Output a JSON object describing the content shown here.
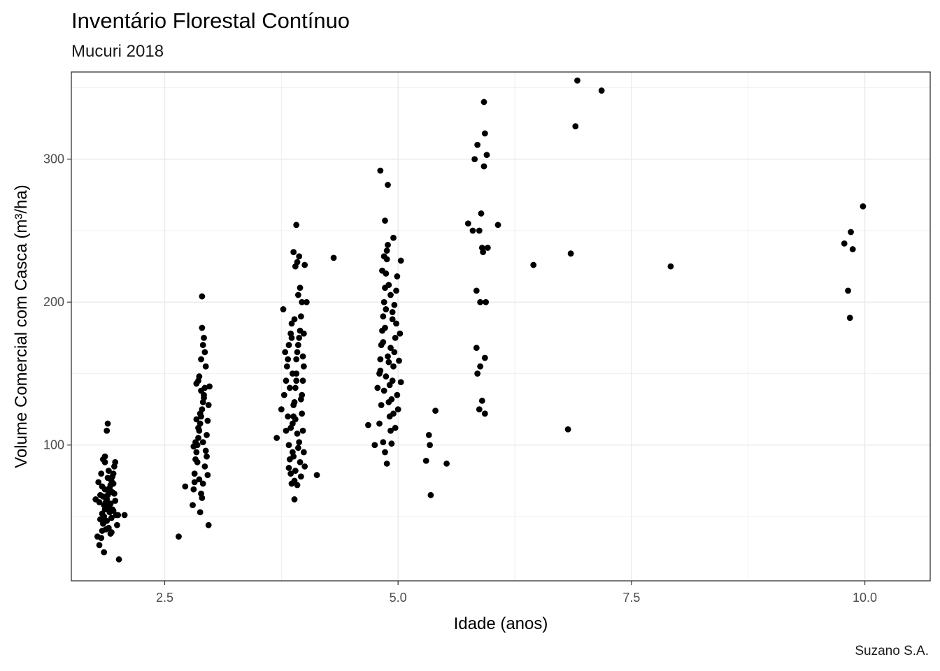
{
  "chart_data": {
    "type": "scatter",
    "title": "Inventário Florestal Contínuo",
    "subtitle": "Mucuri 2018",
    "caption": "Suzano S.A.",
    "xlabel": "Idade (anos)",
    "ylabel": "Volume Comercial com Casca (m³/ha)",
    "xlim": [
      1.5,
      10.7
    ],
    "ylim": [
      5,
      361
    ],
    "xticks": [
      2.5,
      5.0,
      7.5,
      10.0
    ],
    "xtick_labels": [
      "2.5",
      "5.0",
      "7.5",
      "10.0"
    ],
    "yticks": [
      100,
      200,
      300
    ],
    "ytick_labels": [
      "100",
      "200",
      "300"
    ],
    "grid": true,
    "legend": "none",
    "point_color": "#000000",
    "panel_border_color": "#333333",
    "grid_color": "#ebebeb",
    "points": [
      [
        1.8,
        30
      ],
      [
        1.82,
        35
      ],
      [
        1.83,
        40
      ],
      [
        1.84,
        45
      ],
      [
        1.85,
        50
      ],
      [
        1.86,
        55
      ],
      [
        1.87,
        60
      ],
      [
        1.88,
        62
      ],
      [
        1.89,
        65
      ],
      [
        1.9,
        68
      ],
      [
        1.91,
        70
      ],
      [
        1.92,
        72
      ],
      [
        1.93,
        75
      ],
      [
        1.94,
        78
      ],
      [
        1.95,
        80
      ],
      [
        1.96,
        85
      ],
      [
        1.97,
        88
      ],
      [
        1.84,
        90
      ],
      [
        1.86,
        92
      ],
      [
        1.88,
        110
      ],
      [
        1.89,
        115
      ],
      [
        1.8,
        60
      ],
      [
        1.81,
        48
      ],
      [
        1.83,
        52
      ],
      [
        1.85,
        58
      ],
      [
        1.87,
        63
      ],
      [
        1.9,
        42
      ],
      [
        1.92,
        38
      ],
      [
        1.94,
        55
      ],
      [
        1.96,
        66
      ],
      [
        1.98,
        51
      ],
      [
        2.0,
        51
      ],
      [
        1.78,
        36
      ],
      [
        1.76,
        62
      ],
      [
        1.79,
        74
      ],
      [
        1.82,
        80
      ],
      [
        1.85,
        25
      ],
      [
        1.9,
        57
      ],
      [
        1.93,
        49
      ],
      [
        1.95,
        73
      ],
      [
        1.97,
        61
      ],
      [
        1.99,
        44
      ],
      [
        1.86,
        69
      ],
      [
        1.88,
        47
      ],
      [
        1.91,
        53
      ],
      [
        1.84,
        64
      ],
      [
        1.87,
        41
      ],
      [
        1.89,
        77
      ],
      [
        1.92,
        59
      ],
      [
        1.94,
        67
      ],
      [
        2.07,
        51
      ],
      [
        2.01,
        20
      ],
      [
        1.83,
        71
      ],
      [
        1.85,
        46
      ],
      [
        1.88,
        56
      ],
      [
        1.9,
        82
      ],
      [
        1.93,
        39
      ],
      [
        1.95,
        54
      ],
      [
        1.81,
        65
      ],
      [
        1.86,
        88
      ],
      [
        2.65,
        36
      ],
      [
        2.72,
        71
      ],
      [
        2.8,
        58
      ],
      [
        2.81,
        69
      ],
      [
        2.82,
        80
      ],
      [
        2.83,
        90
      ],
      [
        2.84,
        95
      ],
      [
        2.85,
        100
      ],
      [
        2.86,
        105
      ],
      [
        2.87,
        110
      ],
      [
        2.88,
        115
      ],
      [
        2.89,
        120
      ],
      [
        2.9,
        125
      ],
      [
        2.91,
        130
      ],
      [
        2.92,
        135
      ],
      [
        2.93,
        140
      ],
      [
        2.84,
        143
      ],
      [
        2.86,
        145
      ],
      [
        2.89,
        160
      ],
      [
        2.91,
        170
      ],
      [
        2.92,
        175
      ],
      [
        2.9,
        182
      ],
      [
        2.9,
        204
      ],
      [
        2.88,
        53
      ],
      [
        2.89,
        66
      ],
      [
        2.91,
        73
      ],
      [
        2.93,
        85
      ],
      [
        2.94,
        96
      ],
      [
        2.95,
        107
      ],
      [
        2.96,
        117
      ],
      [
        2.97,
        128
      ],
      [
        2.98,
        141
      ],
      [
        2.97,
        44
      ],
      [
        2.94,
        155
      ],
      [
        2.87,
        76
      ],
      [
        2.85,
        88
      ],
      [
        2.83,
        102
      ],
      [
        2.86,
        112
      ],
      [
        2.88,
        122
      ],
      [
        2.92,
        133
      ],
      [
        2.9,
        63
      ],
      [
        2.95,
        92
      ],
      [
        2.81,
        99
      ],
      [
        2.84,
        118
      ],
      [
        2.87,
        148
      ],
      [
        2.93,
        165
      ],
      [
        2.96,
        79
      ],
      [
        2.82,
        74
      ],
      [
        2.89,
        138
      ],
      [
        2.91,
        102
      ],
      [
        3.7,
        105
      ],
      [
        3.75,
        125
      ],
      [
        3.78,
        135
      ],
      [
        3.8,
        145
      ],
      [
        3.81,
        155
      ],
      [
        3.82,
        160
      ],
      [
        3.83,
        100
      ],
      [
        3.84,
        90
      ],
      [
        3.85,
        80
      ],
      [
        3.86,
        73
      ],
      [
        3.87,
        115
      ],
      [
        3.88,
        120
      ],
      [
        3.89,
        130
      ],
      [
        3.9,
        140
      ],
      [
        3.91,
        150
      ],
      [
        3.92,
        165
      ],
      [
        3.93,
        170
      ],
      [
        3.94,
        175
      ],
      [
        3.95,
        180
      ],
      [
        3.96,
        190
      ],
      [
        3.97,
        200
      ],
      [
        3.98,
        110
      ],
      [
        3.99,
        95
      ],
      [
        4.0,
        85
      ],
      [
        3.89,
        62
      ],
      [
        3.9,
        225
      ],
      [
        3.92,
        228
      ],
      [
        3.88,
        235
      ],
      [
        3.94,
        232
      ],
      [
        3.91,
        254
      ],
      [
        4.0,
        226
      ],
      [
        4.02,
        200
      ],
      [
        4.13,
        79
      ],
      [
        4.31,
        231
      ],
      [
        3.77,
        195
      ],
      [
        3.79,
        165
      ],
      [
        3.83,
        170
      ],
      [
        3.85,
        178
      ],
      [
        3.86,
        185
      ],
      [
        3.88,
        128
      ],
      [
        3.9,
        118
      ],
      [
        3.92,
        108
      ],
      [
        3.93,
        98
      ],
      [
        3.95,
        88
      ],
      [
        3.96,
        78
      ],
      [
        3.97,
        135
      ],
      [
        3.98,
        145
      ],
      [
        3.99,
        155
      ],
      [
        3.84,
        140
      ],
      [
        3.87,
        150
      ],
      [
        3.91,
        160
      ],
      [
        3.93,
        205
      ],
      [
        3.95,
        210
      ],
      [
        3.89,
        188
      ],
      [
        3.82,
        120
      ],
      [
        3.85,
        112
      ],
      [
        3.88,
        92
      ],
      [
        3.9,
        82
      ],
      [
        3.92,
        72
      ],
      [
        3.94,
        102
      ],
      [
        3.96,
        132
      ],
      [
        3.98,
        162
      ],
      [
        3.8,
        110
      ],
      [
        3.86,
        175
      ],
      [
        3.97,
        122
      ],
      [
        3.99,
        178
      ],
      [
        3.83,
        84
      ],
      [
        3.87,
        95
      ],
      [
        3.89,
        75
      ],
      [
        3.91,
        145
      ],
      [
        4.68,
        114
      ],
      [
        4.75,
        100
      ],
      [
        4.78,
        140
      ],
      [
        4.8,
        150
      ],
      [
        4.81,
        160
      ],
      [
        4.82,
        170
      ],
      [
        4.83,
        180
      ],
      [
        4.84,
        190
      ],
      [
        4.85,
        200
      ],
      [
        4.86,
        210
      ],
      [
        4.87,
        220
      ],
      [
        4.88,
        230
      ],
      [
        4.89,
        240
      ],
      [
        4.9,
        130
      ],
      [
        4.91,
        120
      ],
      [
        4.92,
        110
      ],
      [
        4.93,
        101
      ],
      [
        4.94,
        145
      ],
      [
        4.95,
        155
      ],
      [
        4.96,
        165
      ],
      [
        4.97,
        175
      ],
      [
        4.98,
        185
      ],
      [
        4.99,
        135
      ],
      [
        5.0,
        125
      ],
      [
        4.86,
        257
      ],
      [
        4.89,
        282
      ],
      [
        4.81,
        292
      ],
      [
        4.95,
        245
      ],
      [
        5.03,
        229
      ],
      [
        5.02,
        178
      ],
      [
        5.03,
        144
      ],
      [
        4.88,
        87
      ],
      [
        4.86,
        95
      ],
      [
        4.84,
        102
      ],
      [
        4.8,
        115
      ],
      [
        4.82,
        128
      ],
      [
        4.85,
        138
      ],
      [
        4.87,
        148
      ],
      [
        4.9,
        158
      ],
      [
        4.92,
        168
      ],
      [
        4.94,
        188
      ],
      [
        4.96,
        198
      ],
      [
        4.98,
        208
      ],
      [
        4.99,
        218
      ],
      [
        4.83,
        222
      ],
      [
        4.85,
        232
      ],
      [
        4.87,
        195
      ],
      [
        4.89,
        162
      ],
      [
        4.91,
        142
      ],
      [
        4.93,
        132
      ],
      [
        4.95,
        122
      ],
      [
        4.97,
        112
      ],
      [
        4.81,
        152
      ],
      [
        4.84,
        172
      ],
      [
        4.86,
        182
      ],
      [
        5.01,
        159
      ],
      [
        4.88,
        236
      ],
      [
        4.9,
        212
      ],
      [
        4.92,
        205
      ],
      [
        4.94,
        193
      ],
      [
        5.3,
        89
      ],
      [
        5.33,
        107
      ],
      [
        5.34,
        100
      ],
      [
        5.35,
        65
      ],
      [
        5.4,
        124
      ],
      [
        5.52,
        87
      ],
      [
        5.75,
        255
      ],
      [
        5.8,
        250
      ],
      [
        5.82,
        300
      ],
      [
        5.84,
        208
      ],
      [
        5.85,
        310
      ],
      [
        5.87,
        250
      ],
      [
        5.88,
        155
      ],
      [
        5.89,
        262
      ],
      [
        5.9,
        238
      ],
      [
        5.91,
        235
      ],
      [
        5.92,
        295
      ],
      [
        5.92,
        340
      ],
      [
        5.93,
        318
      ],
      [
        5.94,
        200
      ],
      [
        5.95,
        303
      ],
      [
        5.96,
        238
      ],
      [
        5.85,
        150
      ],
      [
        5.87,
        125
      ],
      [
        5.9,
        131
      ],
      [
        5.93,
        122
      ],
      [
        5.93,
        161
      ],
      [
        5.88,
        200
      ],
      [
        5.84,
        168
      ],
      [
        6.07,
        254
      ],
      [
        6.45,
        226
      ],
      [
        6.82,
        111
      ],
      [
        6.85,
        234
      ],
      [
        6.9,
        323
      ],
      [
        6.92,
        355
      ],
      [
        7.18,
        348
      ],
      [
        7.92,
        225
      ],
      [
        9.78,
        241
      ],
      [
        9.82,
        208
      ],
      [
        9.84,
        189
      ],
      [
        9.85,
        249
      ],
      [
        9.87,
        237
      ],
      [
        9.98,
        267
      ]
    ]
  }
}
